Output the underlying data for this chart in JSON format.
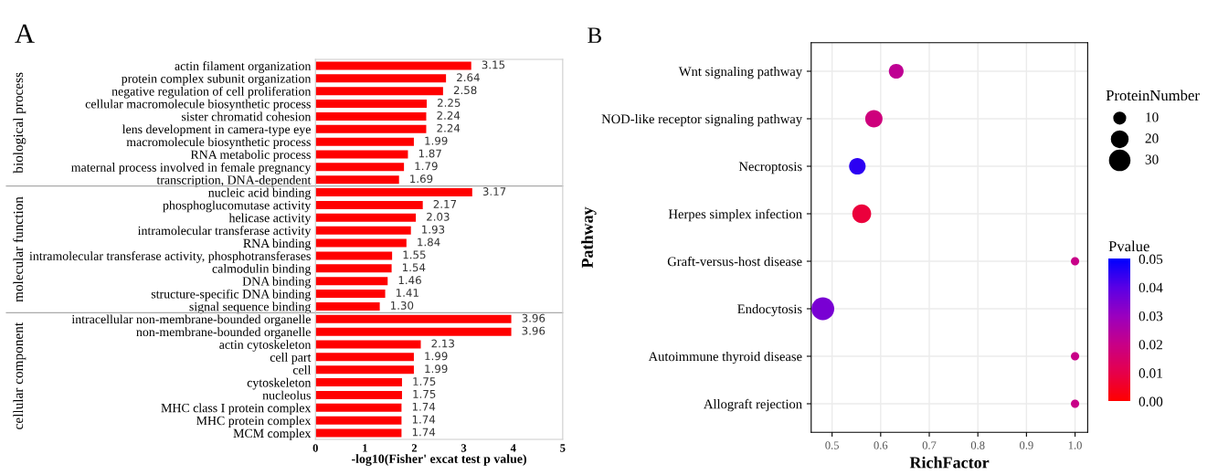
{
  "chart_data": [
    {
      "type": "bar",
      "title": "A",
      "orientation": "horizontal",
      "xlabel": "-log10(Fisher' excat test p value)",
      "categories": [
        "actin filament organization",
        "protein complex subunit organization",
        "negative regulation of cell proliferation",
        "cellular macromolecule biosynthetic process",
        "sister chromatid cohesion",
        "lens development in camera-type eye",
        "macromolecule biosynthetic process",
        "RNA metabolic process",
        "maternal process involved in female pregnancy",
        "transcription, DNA-dependent",
        "nucleic acid binding",
        "phosphoglucomutase activity",
        "helicase activity",
        "intramolecular transferase activity",
        "RNA binding",
        "intramolecular transferase activity, phosphotransferases",
        "calmodulin binding",
        "DNA binding",
        "structure-specific DNA binding",
        "signal sequence binding",
        "intracellular non-membrane-bounded organelle",
        "non-membrane-bounded organelle",
        "actin cytoskeleton",
        "cell part",
        "cell",
        "cytoskeleton",
        "nucleolus",
        "MHC class I protein complex",
        "MHC protein complex",
        "MCM complex"
      ],
      "series": [
        {
          "color": "#ff0000",
          "values": [
            3.15,
            2.64,
            2.58,
            2.25,
            2.24,
            2.24,
            1.99,
            1.87,
            1.79,
            1.69,
            3.17,
            2.17,
            2.03,
            1.93,
            1.84,
            1.55,
            1.54,
            1.46,
            1.41,
            1.3,
            3.96,
            3.96,
            2.13,
            1.99,
            1.99,
            1.75,
            1.75,
            1.74,
            1.74,
            1.74
          ]
        }
      ],
      "value_labels": [
        "3.15",
        "2.64",
        "2.58",
        "2.25",
        "2.24",
        "2.24",
        "1.99",
        "1.87",
        "1.79",
        "1.69",
        "3.17",
        "2.17",
        "2.03",
        "1.93",
        "1.84",
        "1.55",
        "1.54",
        "1.46",
        "1.41",
        "1.30",
        "3.96",
        "3.96",
        "2.13",
        "1.99",
        "1.99",
        "1.75",
        "1.75",
        "1.74",
        "1.74",
        "1.74"
      ],
      "xlim": [
        0,
        5
      ],
      "xticks": [
        0,
        1,
        2,
        3,
        4,
        5
      ],
      "grid": false,
      "annotations": [
        "biological process",
        "molecular function",
        "cellular component"
      ]
    },
    {
      "type": "bubble",
      "title": "B",
      "orientation": "horizontal",
      "xlabel": "RichFactor",
      "ylabel": "Pathway",
      "categories": [
        "Wnt signaling pathway",
        "NOD-like receptor signaling pathway",
        "Necroptosis",
        "Herpes simplex infection",
        "Graft-versus-host disease",
        "Endocytosis",
        "Autoimmune thyroid disease",
        "Allograft rejection"
      ],
      "values": [
        0.632,
        0.586,
        0.552,
        0.561,
        1.0,
        0.481,
        1.0,
        1.0
      ],
      "sizes": [
        16,
        22,
        20,
        26,
        5,
        38,
        5,
        5
      ],
      "cvalues": [
        0.022,
        0.018,
        0.045,
        0.008,
        0.02,
        0.035,
        0.02,
        0.02
      ],
      "size_legend": [
        10,
        20,
        30
      ],
      "legend_title": "ProteinNumber",
      "clabel": "Pvalue",
      "clim": [
        0,
        0.05
      ],
      "cticks": [
        {
          "value": 0,
          "label": "0.00"
        },
        {
          "value": 0.01,
          "label": "0.01"
        },
        {
          "value": 0.02,
          "label": "0.02"
        },
        {
          "value": 0.03,
          "label": "0.03"
        },
        {
          "value": 0.04,
          "label": "0.04"
        },
        {
          "value": 0.05,
          "label": "0.05"
        }
      ],
      "xlim": [
        0.457,
        1.026
      ],
      "xticks": [
        0.5,
        0.6,
        0.7,
        0.8,
        0.9,
        {
          "value": 1.0,
          "label": "1.0"
        }
      ],
      "grid": true
    }
  ]
}
